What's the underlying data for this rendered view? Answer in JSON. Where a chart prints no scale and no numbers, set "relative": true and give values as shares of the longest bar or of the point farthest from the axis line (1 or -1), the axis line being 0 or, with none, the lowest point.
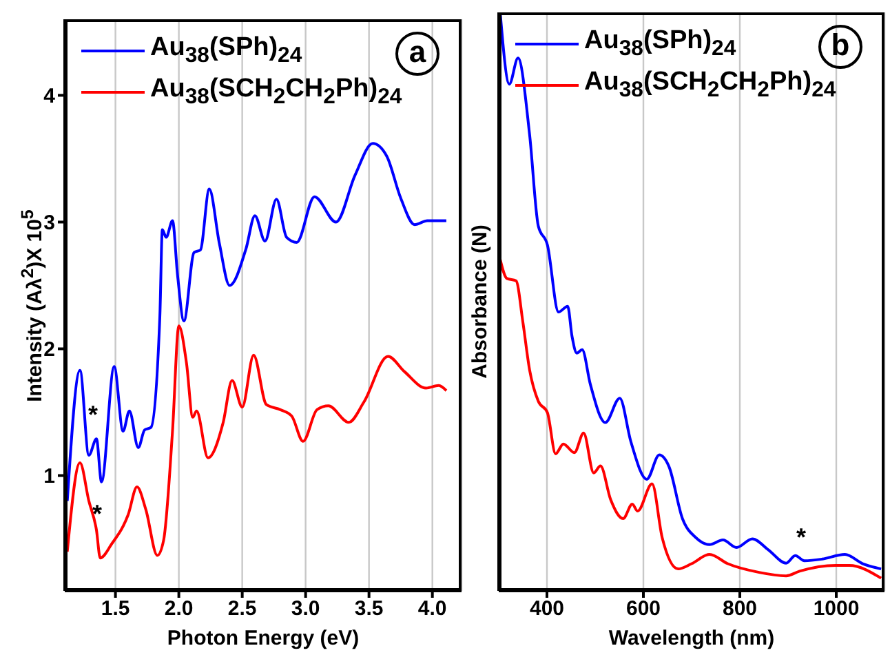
{
  "chart_data": [
    {
      "type": "line",
      "xlabel": "Photon Energy (eV)",
      "ylabel": "Intensity  (Aλ$^{2}$)X 10$^{5}$",
      "xlim": [
        1.1,
        4.23
      ],
      "xticks": [
        {
          "value": 1.5,
          "label": "1.5"
        },
        {
          "value": 2,
          "label": "2.0"
        },
        {
          "value": 2.5,
          "label": "2.5"
        },
        {
          "value": 3,
          "label": "3.0"
        },
        {
          "value": 3.5,
          "label": "3.5"
        },
        {
          "value": 4,
          "label": "4.0"
        }
      ],
      "ylim": [
        0.09,
        4.6
      ],
      "yticks": [
        1,
        2,
        3,
        4
      ],
      "grid": "x",
      "legend": "top left",
      "marker": "none",
      "line_style": "solid",
      "annotations": [
        "*",
        "*",
        "a"
      ],
      "series": [
        {
          "name": "Au$_{38}$(SPh)$_{24}$",
          "color": "#0000ff",
          "x": [
            1.12,
            1.22,
            1.29,
            1.35,
            1.39,
            1.49,
            1.56,
            1.61,
            1.68,
            1.73,
            1.78,
            1.85,
            1.87,
            1.9,
            1.95,
            1.99,
            2.04,
            2.12,
            2.17,
            2.24,
            2.32,
            2.4,
            2.53,
            2.6,
            2.68,
            2.77,
            2.85,
            2.93,
            3.07,
            3.24,
            3.39,
            3.53,
            3.64,
            3.75,
            3.86,
            3.96,
            4.11
          ],
          "values": [
            0.8,
            1.83,
            1.16,
            1.29,
            0.95,
            1.86,
            1.35,
            1.51,
            1.22,
            1.36,
            1.38,
            2.25,
            2.94,
            2.88,
            3.01,
            2.58,
            2.22,
            2.76,
            2.78,
            3.26,
            2.83,
            2.5,
            2.79,
            3.05,
            2.85,
            3.18,
            2.88,
            2.84,
            3.2,
            3.0,
            3.37,
            3.62,
            3.52,
            3.19,
            2.98,
            3.01,
            3.01
          ]
        },
        {
          "name": "Au$_{38}$(SCH$_{2}$CH$_{2}$Ph)$_{24}$",
          "color": "#ff0000",
          "x": [
            1.12,
            1.22,
            1.29,
            1.35,
            1.38,
            1.47,
            1.6,
            1.67,
            1.74,
            1.83,
            1.88,
            1.95,
            2.0,
            2.06,
            2.11,
            2.14,
            2.23,
            2.35,
            2.42,
            2.5,
            2.59,
            2.69,
            2.8,
            2.89,
            2.98,
            3.09,
            3.18,
            3.34,
            3.46,
            3.65,
            3.78,
            3.95,
            4.05,
            4.11
          ],
          "values": [
            0.4,
            1.1,
            0.8,
            0.57,
            0.35,
            0.46,
            0.69,
            0.91,
            0.73,
            0.37,
            0.49,
            1.35,
            2.18,
            1.89,
            1.46,
            1.51,
            1.14,
            1.42,
            1.75,
            1.54,
            1.95,
            1.56,
            1.52,
            1.47,
            1.27,
            1.52,
            1.55,
            1.42,
            1.58,
            1.94,
            1.82,
            1.69,
            1.71,
            1.67
          ]
        }
      ]
    },
    {
      "type": "line",
      "relative": true,
      "xlabel": "Wavelength (nm)",
      "ylabel": "Absorbance (N)",
      "xlim": [
        300,
        1100
      ],
      "xticks": [
        400,
        600,
        800,
        1000
      ],
      "grid": "x",
      "legend": "top left",
      "marker": "none",
      "line_style": "solid",
      "annotations": [
        "*",
        "b"
      ],
      "series": [
        {
          "name": "Au$_{38}$(SPh)$_{24}$",
          "color": "#0000ff",
          "x": [
            303,
            322,
            340,
            364,
            382,
            401,
            424,
            443,
            452,
            462,
            473,
            490,
            521,
            551,
            574,
            607,
            633,
            653,
            681,
            709,
            737,
            765,
            793,
            826,
            859,
            896,
            915,
            934,
            971,
            1018,
            1055,
            1093
          ],
          "values": [
            1.0,
            0.876,
            0.921,
            0.789,
            0.631,
            0.598,
            0.482,
            0.492,
            0.44,
            0.411,
            0.417,
            0.357,
            0.291,
            0.333,
            0.258,
            0.193,
            0.235,
            0.215,
            0.125,
            0.092,
            0.08,
            0.088,
            0.075,
            0.09,
            0.071,
            0.048,
            0.061,
            0.052,
            0.055,
            0.063,
            0.047,
            0.038
          ]
        },
        {
          "name": "Au$_{38}$(SCH$_{2}$CH$_{2}$Ph)$_{24}$",
          "color": "#ff0000",
          "x": [
            303,
            317,
            336,
            350,
            364,
            382,
            401,
            418,
            434,
            457,
            476,
            497,
            511,
            532,
            558,
            577,
            588,
            618,
            639,
            672,
            700,
            737,
            775,
            840,
            896,
            924,
            999,
            1027,
            1093
          ],
          "values": [
            0.573,
            0.54,
            0.536,
            0.465,
            0.382,
            0.328,
            0.308,
            0.237,
            0.254,
            0.239,
            0.273,
            0.204,
            0.216,
            0.158,
            0.125,
            0.15,
            0.138,
            0.185,
            0.092,
            0.038,
            0.047,
            0.063,
            0.047,
            0.032,
            0.026,
            0.034,
            0.044,
            0.044,
            0.022
          ]
        }
      ]
    }
  ]
}
